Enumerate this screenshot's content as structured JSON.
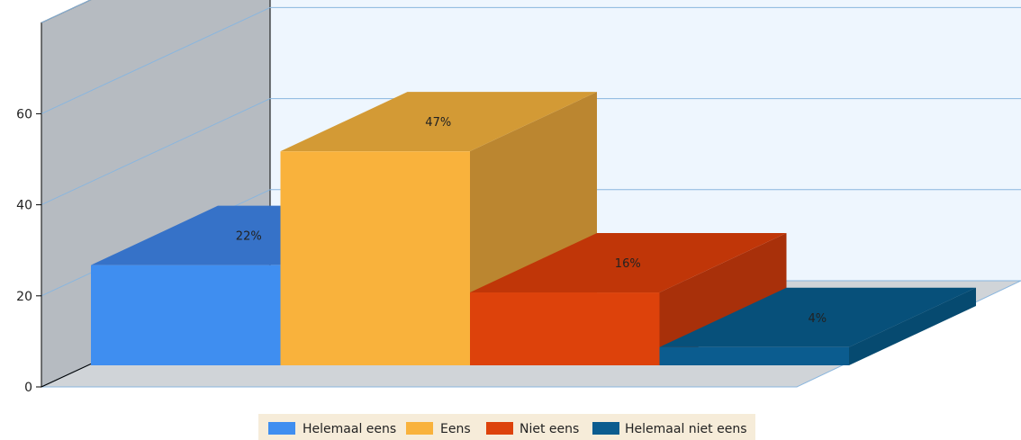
{
  "chart_data": {
    "type": "bar",
    "style": "3d",
    "categories": [
      "Helemaal eens",
      "Eens",
      "Niet eens",
      "Helemaal niet eens"
    ],
    "values": [
      22,
      47,
      16,
      4
    ],
    "value_labels": [
      "22%",
      "47%",
      "16%",
      "4%"
    ],
    "y_ticks": [
      "0",
      "20",
      "40",
      "60"
    ],
    "ylim": [
      0,
      80
    ],
    "grid": true,
    "legend": {
      "position": "bottom",
      "items": [
        {
          "label": "Helemaal eens",
          "color": "#3f8ef0"
        },
        {
          "label": "Eens",
          "color": "#f9b23c"
        },
        {
          "label": "Niet eens",
          "color": "#dd420b"
        },
        {
          "label": "Helemaal niet eens",
          "color": "#0b5c8f"
        }
      ]
    },
    "colors": {
      "front": [
        "#3f8ef0",
        "#f9b23c",
        "#dd420b",
        "#0b5c8f"
      ],
      "top": [
        "#3672c8",
        "#d39a35",
        "#c03608",
        "#07507a"
      ],
      "side": [
        "#2f63ad",
        "#bb8630",
        "#a8300a",
        "#064a70"
      ],
      "back_wall": "#eef6fe",
      "side_wall": "#b6bbc1",
      "floor": "#d0d4d8",
      "gridline": "#8ab6de"
    }
  }
}
